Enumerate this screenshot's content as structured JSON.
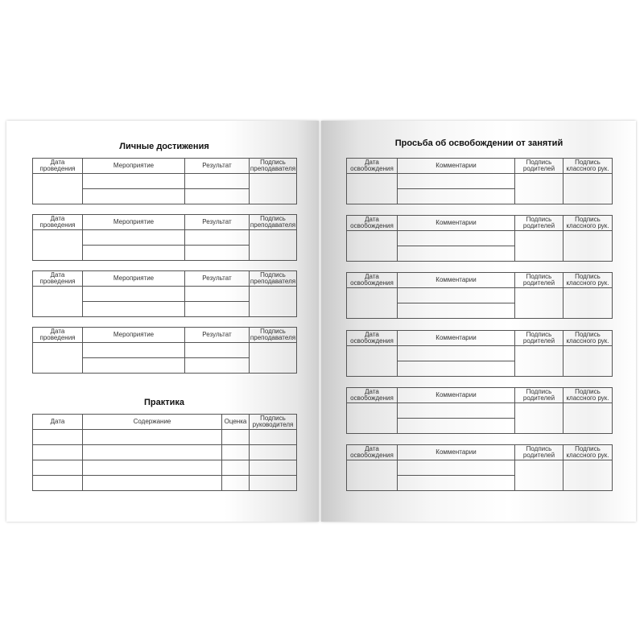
{
  "left": {
    "title": "Личные достижения",
    "achievement_headers": [
      "Дата проведения",
      "Мероприятие",
      "Результат",
      "Подпись преподавателя"
    ],
    "achievement_table_count": 4,
    "practice_title": "Практика",
    "practice_headers": [
      "Дата",
      "Содержание",
      "Оценка",
      "Подпись руководителя"
    ],
    "practice_rows": 4
  },
  "right": {
    "title": "Просьба об освобождении от занятий",
    "headers": [
      "Дата освобождения",
      "Комментарии",
      "Подпись родителей",
      "Подпись классного рук."
    ],
    "table_count": 6
  }
}
